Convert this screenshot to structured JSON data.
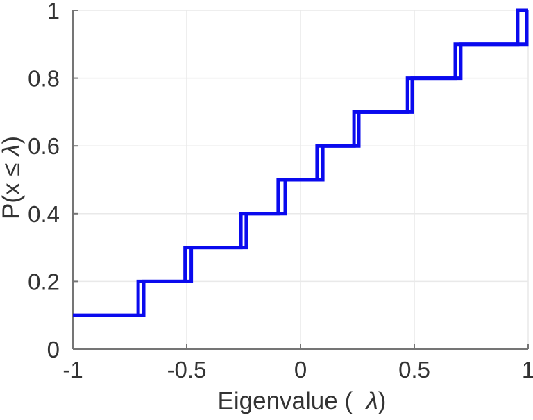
{
  "chart_data": {
    "type": "line",
    "subtype": "ecdf-staircase",
    "xlabel": {
      "prefix": "Eigenvalue (  ",
      "lambda": "λ",
      "suffix": ")"
    },
    "ylabel": {
      "prefix": "P(x ≤ ",
      "lambda": "λ",
      "suffix": ")"
    },
    "xlim": [
      -1,
      1
    ],
    "ylim": [
      0,
      1
    ],
    "xtick_values": [
      -1,
      -0.5,
      0,
      0.5,
      1
    ],
    "xtick_labels": [
      "-1",
      "-0.5",
      "0",
      "0.5",
      "1"
    ],
    "ytick_values": [
      0,
      0.2,
      0.4,
      0.6,
      0.8,
      1
    ],
    "ytick_labels": [
      "0",
      "0.2",
      "0.4",
      "0.6",
      "0.8",
      "1"
    ],
    "grid": true,
    "legend": "none",
    "step_height": 0.1,
    "series": [
      {
        "name": "ecdf-staircase-left",
        "jump_x": [
          -1,
          -0.713,
          -0.507,
          -0.262,
          -0.098,
          0.073,
          0.235,
          0.47,
          0.68,
          0.954
        ]
      },
      {
        "name": "ecdf-staircase-right",
        "jump_x": [
          -1,
          -0.689,
          -0.48,
          -0.238,
          -0.067,
          0.098,
          0.256,
          0.491,
          0.704,
          0.994
        ]
      }
    ],
    "colors": {
      "line": "#0a0aee",
      "axis": "#757575",
      "grid": "#e9e9e9",
      "text": "#333333"
    }
  }
}
